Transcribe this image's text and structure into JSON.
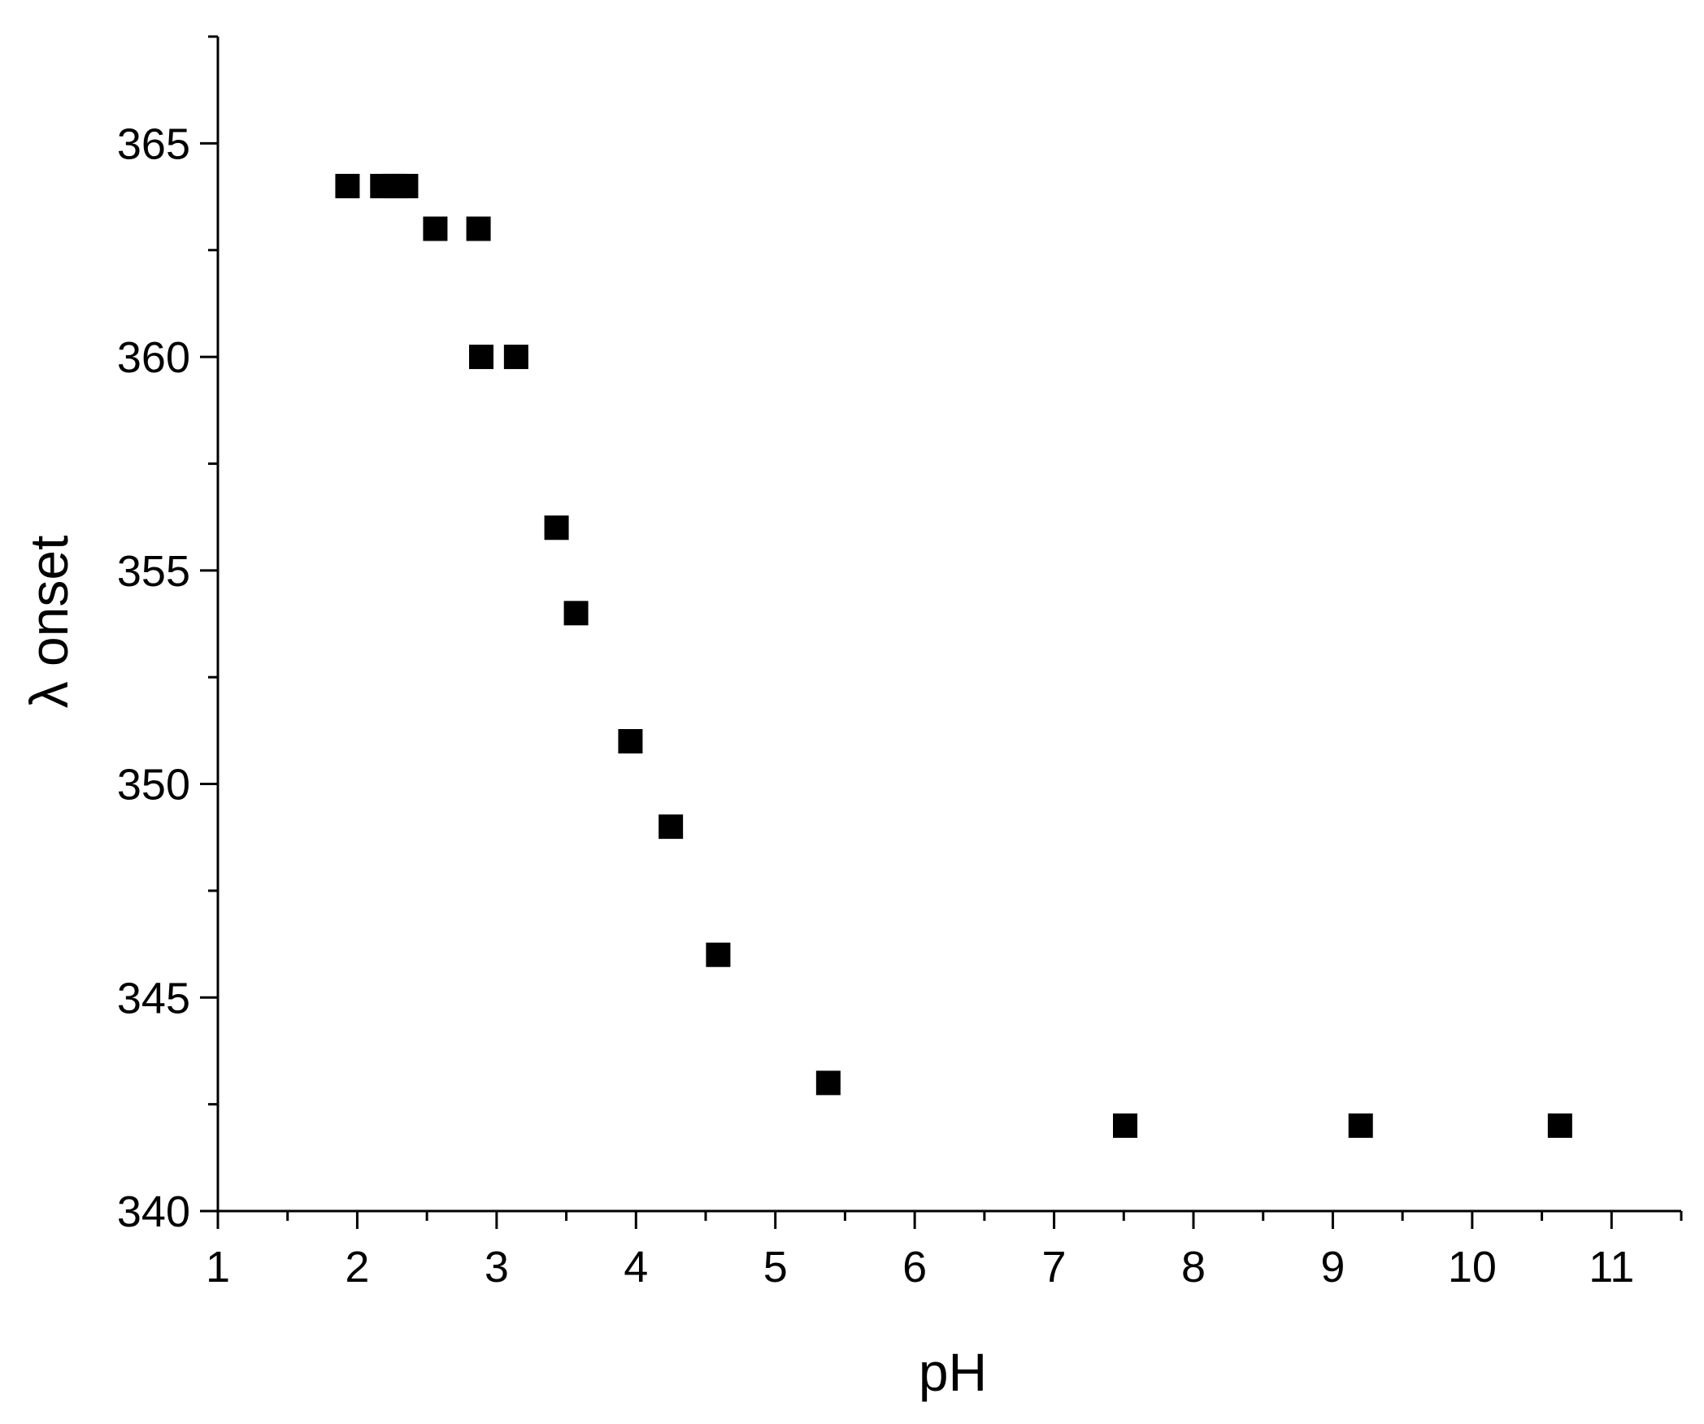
{
  "chart_data": {
    "type": "scatter",
    "title": "",
    "xlabel": "pH",
    "ylabel": "λ onset",
    "xlim": [
      1,
      11.5
    ],
    "ylim": [
      340,
      367.5
    ],
    "x_ticks": [
      1,
      2,
      3,
      4,
      5,
      6,
      7,
      8,
      9,
      10,
      11
    ],
    "x_tick_labels": [
      "1",
      "2",
      "3",
      "4",
      "5",
      "6",
      "7",
      "8",
      "9",
      "10",
      "11"
    ],
    "x_minor_ticks": [
      1.5,
      2.5,
      3.5,
      4.5,
      5.5,
      6.5,
      7.5,
      8.5,
      9.5,
      10.5,
      11.5
    ],
    "y_ticks": [
      340,
      345,
      350,
      355,
      360,
      365
    ],
    "y_tick_labels": [
      "340",
      "345",
      "350",
      "355",
      "360",
      "365"
    ],
    "y_minor_ticks": [
      342.5,
      347.5,
      352.5,
      357.5,
      362.5,
      367.5
    ],
    "grid": false,
    "marker": "square",
    "marker_color": "#000000",
    "series": [
      {
        "points": [
          {
            "x": 1.93,
            "y": 364
          },
          {
            "x": 2.18,
            "y": 364
          },
          {
            "x": 2.27,
            "y": 364
          },
          {
            "x": 2.35,
            "y": 364
          },
          {
            "x": 2.56,
            "y": 363
          },
          {
            "x": 2.87,
            "y": 363
          },
          {
            "x": 2.89,
            "y": 360
          },
          {
            "x": 3.14,
            "y": 360
          },
          {
            "x": 3.43,
            "y": 356
          },
          {
            "x": 3.57,
            "y": 354
          },
          {
            "x": 3.96,
            "y": 351
          },
          {
            "x": 4.25,
            "y": 349
          },
          {
            "x": 4.59,
            "y": 346
          },
          {
            "x": 5.38,
            "y": 343
          },
          {
            "x": 7.51,
            "y": 342
          },
          {
            "x": 9.2,
            "y": 342
          },
          {
            "x": 10.63,
            "y": 342
          }
        ]
      }
    ]
  }
}
